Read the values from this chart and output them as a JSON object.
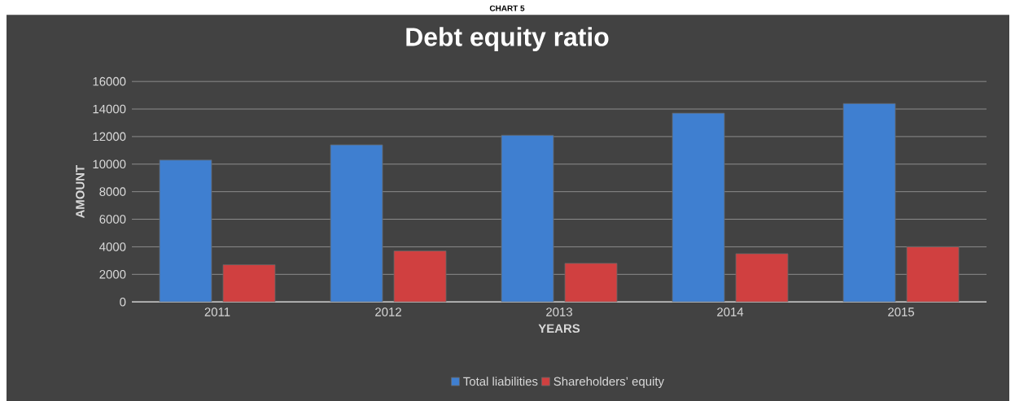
{
  "chart_data": {
    "type": "bar",
    "title": "Debt equity ratio",
    "xlabel": "YEARS",
    "ylabel": "AMOUNT",
    "annotations": [
      "CHART 5"
    ],
    "categories": [
      "2011",
      "2012",
      "2013",
      "2014",
      "2015"
    ],
    "series": [
      {
        "name": "Total liabilities",
        "color": "#3f7fd0",
        "values": [
          10300,
          11400,
          12100,
          13700,
          14400
        ]
      },
      {
        "name": "Shareholders’ equity",
        "color": "#d04040",
        "values": [
          2700,
          3700,
          2800,
          3500,
          4000
        ]
      }
    ],
    "ylim": [
      0,
      16000
    ],
    "yticks": [
      0,
      2000,
      4000,
      6000,
      8000,
      10000,
      12000,
      14000,
      16000
    ],
    "grid": "y",
    "legend": "bottom"
  }
}
